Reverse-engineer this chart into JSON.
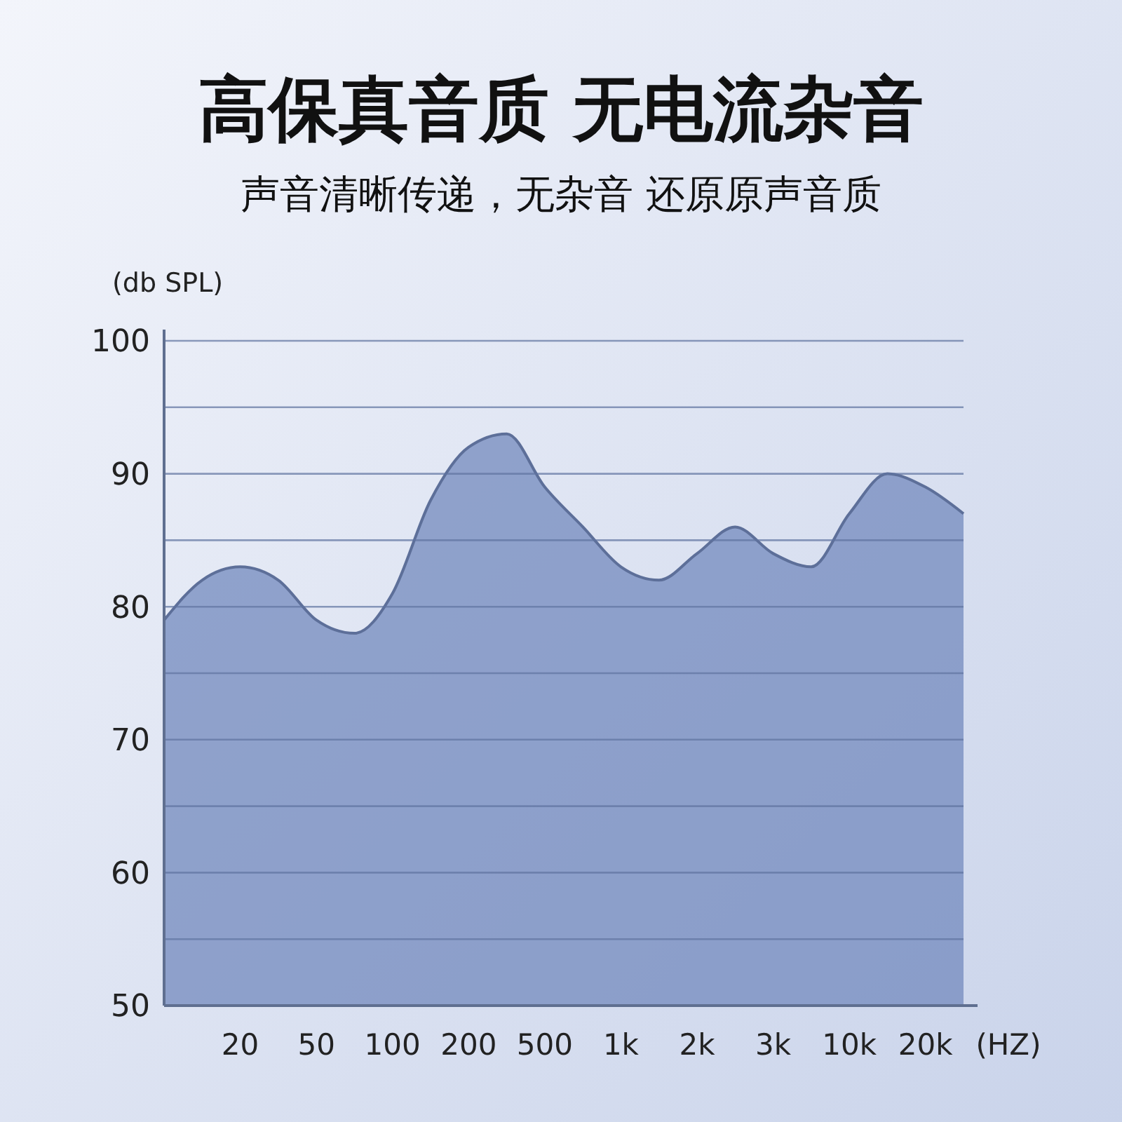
{
  "chart_data": {
    "type": "area",
    "title": "高保真音质 无电流杂音",
    "subtitle": "声音清晰传递，无杂音 还原原声音质",
    "ylabel": "(db SPL)",
    "xlabel": "(HZ)",
    "categories": [
      null,
      null,
      "20",
      null,
      "50",
      null,
      "100",
      null,
      "200",
      null,
      "500",
      null,
      "1k",
      null,
      "2k",
      null,
      "3k",
      null,
      "10k",
      null,
      "20k",
      null
    ],
    "series": [
      {
        "color": "#7389bd",
        "values": [
          79,
          82,
          83,
          82,
          79,
          78,
          81,
          88,
          92,
          93,
          89,
          86,
          83,
          82,
          84,
          86,
          84,
          83,
          87,
          90,
          89,
          87
        ]
      }
    ],
    "ylim": [
      50,
      100
    ],
    "yticks": [
      50,
      {
        "value": 55,
        "label": null
      },
      60,
      {
        "value": 65,
        "label": null
      },
      70,
      {
        "value": 75,
        "label": null
      },
      80,
      {
        "value": 85,
        "label": null
      },
      90,
      {
        "value": 95,
        "label": null
      },
      100
    ],
    "grid": "y"
  }
}
